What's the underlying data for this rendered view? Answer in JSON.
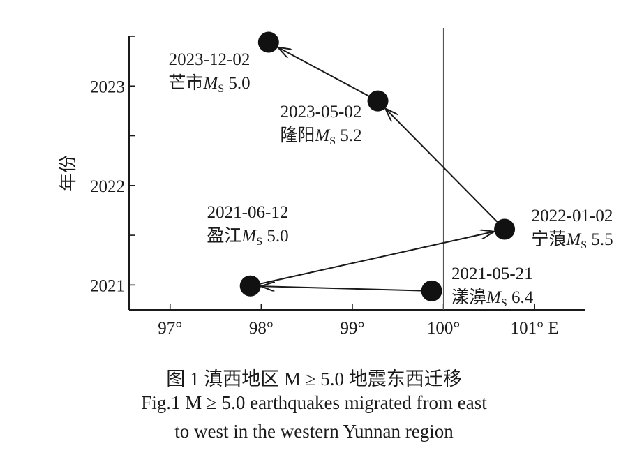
{
  "chart_data": {
    "type": "scatter",
    "ylabel": "年份",
    "x_ticks": [
      {
        "value": 97,
        "label": "97°"
      },
      {
        "value": 98,
        "label": "98°"
      },
      {
        "value": 99,
        "label": "99°"
      },
      {
        "value": 100,
        "label": "100°"
      },
      {
        "value": 101,
        "label": "101° E"
      }
    ],
    "y_ticks": [
      {
        "value": 2021,
        "label": "2021"
      },
      {
        "value": 2021.5,
        "label": ""
      },
      {
        "value": 2022,
        "label": "2022"
      },
      {
        "value": 2022.5,
        "label": ""
      },
      {
        "value": 2023,
        "label": "2023"
      },
      {
        "value": 2023.5,
        "label": ""
      }
    ],
    "xlim": [
      96.55,
      101.55
    ],
    "ylim": [
      2020.75,
      2023.5
    ],
    "reference_line_x": 100,
    "grid": false,
    "points": [
      {
        "x": 99.87,
        "y": 2020.94,
        "date": "2021-05-21",
        "place": "漾濞",
        "mag": "6.4"
      },
      {
        "x": 97.88,
        "y": 2020.99,
        "date": "2021-06-12",
        "place": "盈江",
        "mag": "5.0"
      },
      {
        "x": 100.67,
        "y": 2021.56,
        "date": "2022-01-02",
        "place": "宁蒗",
        "mag": "5.5"
      },
      {
        "x": 99.28,
        "y": 2022.85,
        "date": "2023-05-02",
        "place": "隆阳",
        "mag": "5.2"
      },
      {
        "x": 98.08,
        "y": 2023.44,
        "date": "2023-12-02",
        "place": "芒市",
        "mag": "5.0"
      }
    ],
    "migration_path": [
      0,
      1,
      2,
      3,
      4
    ],
    "magnitude_symbol": "M",
    "magnitude_subscript": "S"
  },
  "caption": {
    "cn": "图 1  滇西地区 M ≥ 5.0 地震东西迁移",
    "en_line1": "Fig.1    M ≥ 5.0 earthquakes migrated from east",
    "en_line2": "to west in the western Yunnan region"
  }
}
